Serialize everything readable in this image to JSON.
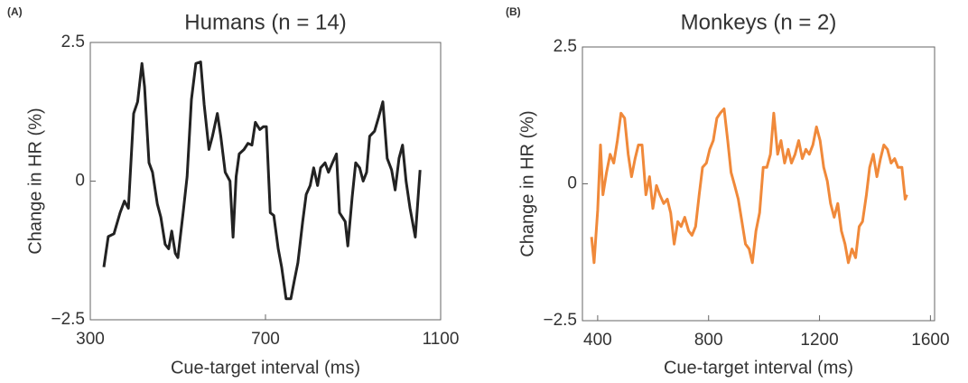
{
  "chart_data": [
    {
      "type": "line",
      "panel_label": "(A)",
      "title": "Humans (n = 14)",
      "xlabel": "Cue-target interval (ms)",
      "ylabel": "Change in HR (%)",
      "xlim": [
        300,
        1100
      ],
      "xticks": [
        300,
        700,
        1100
      ],
      "ylim": [
        -2.5,
        2.5
      ],
      "yticks": [
        {
          "value": -2.5,
          "label": "−2.5"
        },
        0,
        2.5
      ],
      "series": [
        {
          "color": "#222222",
          "x": [
            331,
            341,
            354,
            368,
            378,
            387,
            399,
            408,
            418,
            424,
            434,
            442,
            453,
            461,
            471,
            479,
            486,
            494,
            500,
            512,
            521,
            531,
            541,
            552,
            560,
            571,
            579,
            590,
            598,
            608,
            619,
            626,
            633,
            640,
            651,
            660,
            669,
            677,
            687,
            695,
            702,
            711,
            719,
            729,
            737,
            747,
            758,
            766,
            774,
            785,
            793,
            802,
            810,
            819,
            826,
            836,
            844,
            853,
            862,
            869,
            882,
            888,
            898,
            906,
            915,
            923,
            931,
            938,
            949,
            958,
            968,
            978,
            988,
            996,
            1005,
            1013,
            1021,
            1030,
            1042,
            1053
          ],
          "values": [
            -1.55,
            -1.0,
            -0.95,
            -0.57,
            -0.36,
            -0.49,
            1.22,
            1.43,
            2.12,
            1.7,
            0.33,
            0.16,
            -0.41,
            -0.65,
            -1.14,
            -1.22,
            -0.9,
            -1.3,
            -1.38,
            -0.57,
            0.08,
            1.47,
            2.12,
            2.15,
            1.38,
            0.57,
            0.81,
            1.22,
            0.81,
            0.16,
            0,
            -1.01,
            0.08,
            0.49,
            0.57,
            0.68,
            0.65,
            1.06,
            0.93,
            0.98,
            0.98,
            -0.57,
            -0.62,
            -1.22,
            -1.55,
            -2.12,
            -2.12,
            -1.79,
            -1.47,
            -0.73,
            -0.24,
            -0.08,
            0.24,
            -0.08,
            0.24,
            0.33,
            0.16,
            0.33,
            0.49,
            -0.57,
            -0.73,
            -1.17,
            -0.29,
            0.33,
            0.24,
            0,
            0.16,
            0.81,
            0.9,
            1.14,
            1.43,
            0.41,
            0.2,
            -0.16,
            0.41,
            0.65,
            0,
            -0.49,
            -1.01,
            0.2
          ]
        }
      ]
    },
    {
      "type": "line",
      "panel_label": "(B)",
      "title": "Monkeys (n = 2)",
      "xlabel": "Cue-target interval (ms)",
      "ylabel": "Change in HR (%)",
      "xlim": [
        345,
        1615
      ],
      "xticks": [
        400,
        800,
        1200,
        1600
      ],
      "ylim": [
        -2.5,
        2.5
      ],
      "yticks": [
        {
          "value": -2.5,
          "label": "−2.5"
        },
        0,
        2.5
      ],
      "series": [
        {
          "color": "#f0893a",
          "x": [
            378,
            387,
            400,
            410,
            419,
            432,
            445,
            458,
            471,
            484,
            497,
            510,
            522,
            535,
            547,
            560,
            574,
            587,
            599,
            612,
            624,
            638,
            651,
            663,
            676,
            689,
            701,
            714,
            728,
            740,
            753,
            766,
            778,
            792,
            804,
            817,
            830,
            842,
            856,
            869,
            881,
            894,
            907,
            920,
            933,
            946,
            958,
            971,
            984,
            997,
            1010,
            1023,
            1035,
            1049,
            1061,
            1074,
            1087,
            1099,
            1112,
            1125,
            1138,
            1151,
            1163,
            1176,
            1189,
            1202,
            1215,
            1228,
            1240,
            1253,
            1266,
            1279,
            1292,
            1304,
            1317,
            1330,
            1343,
            1355,
            1369,
            1381,
            1394,
            1407,
            1420,
            1432,
            1445,
            1458,
            1471,
            1483,
            1497,
            1509,
            1515
          ],
          "values": [
            -0.97,
            -1.44,
            -0.48,
            0.71,
            -0.2,
            0.21,
            0.54,
            0.38,
            0.79,
            1.29,
            1.2,
            0.54,
            0.13,
            0.46,
            0.71,
            0.71,
            -0.2,
            0.13,
            -0.45,
            -0.03,
            -0.2,
            -0.36,
            -0.28,
            -0.53,
            -1.1,
            -0.69,
            -0.78,
            -0.61,
            -0.86,
            -0.94,
            -0.78,
            -0.2,
            0.3,
            0.38,
            0.63,
            0.79,
            1.2,
            1.29,
            1.37,
            0.79,
            0.21,
            -0.03,
            -0.28,
            -0.69,
            -1.1,
            -1.19,
            -1.44,
            -0.86,
            -0.53,
            0.3,
            0.3,
            0.54,
            1.29,
            0.54,
            0.79,
            0.38,
            0.63,
            0.38,
            0.54,
            0.79,
            0.46,
            0.63,
            0.54,
            0.71,
            1.04,
            0.79,
            0.3,
            0.05,
            -0.36,
            -0.61,
            -0.36,
            -0.86,
            -1.1,
            -1.44,
            -1.19,
            -1.35,
            -0.78,
            -0.69,
            -0.2,
            0.3,
            0.54,
            0.13,
            0.46,
            0.71,
            0.63,
            0.38,
            0.46,
            0.3,
            0.3,
            -0.28,
            -0.2
          ]
        }
      ]
    }
  ]
}
